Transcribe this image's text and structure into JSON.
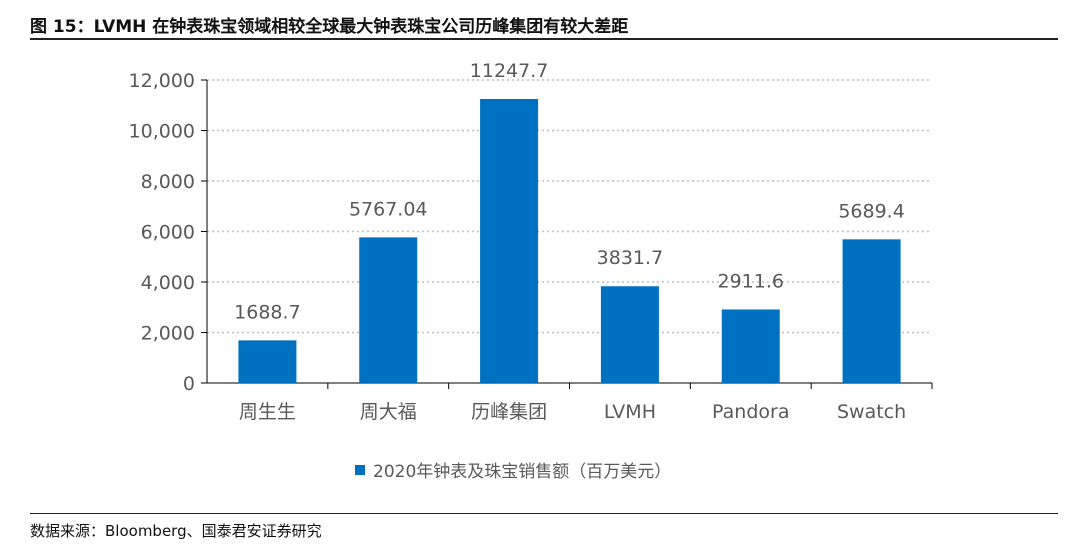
{
  "header": {
    "title": "图 15：LVMH 在钟表珠宝领域相较全球最大钟表珠宝公司历峰集团有较大差距"
  },
  "footer": {
    "source": "数据来源：Bloomberg、国泰君安证券研究"
  },
  "colors": {
    "bar": "#0070C0",
    "grid": "#BFBFBF",
    "axis": "#000000"
  },
  "chart_data": {
    "type": "bar",
    "categories": [
      "周生生",
      "周大福",
      "历峰集团",
      "LVMH",
      "Pandora",
      "Swatch"
    ],
    "series": [
      {
        "name": "2020年钟表及珠宝销售额（百万美元）",
        "values": [
          1688.7,
          5767.04,
          11247.7,
          3831.7,
          2911.6,
          5689.4
        ],
        "labels": [
          "1688.7",
          "5767.04",
          "11247.7",
          "3831.7",
          "2911.6",
          "5689.4"
        ]
      }
    ],
    "ylim": [
      0,
      12000
    ],
    "yticks": [
      0,
      2000,
      4000,
      6000,
      8000,
      10000,
      12000
    ],
    "ytick_labels": [
      "0",
      "2,000",
      "4,000",
      "6,000",
      "8,000",
      "10,000",
      "12,000"
    ],
    "grid": true,
    "legend_position": "bottom"
  }
}
